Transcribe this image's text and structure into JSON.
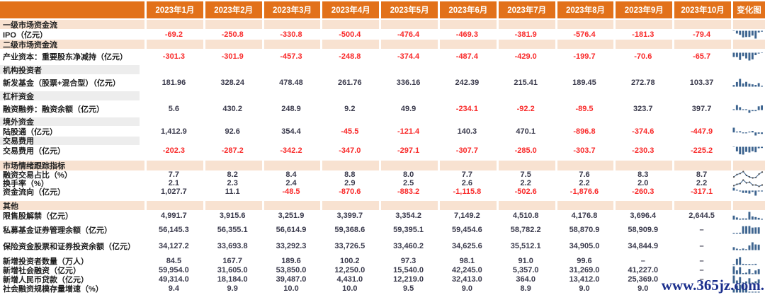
{
  "colors": {
    "header_orange": "#e2711a",
    "section_peach": "#f8e2d1",
    "section_gray": "#ededed",
    "value_dark": "#3a3a4c",
    "value_negative_red": "#f92a2a",
    "sparkline_blue": "#3d648f",
    "watermark_blue": "#1b2f8d"
  },
  "watermark": "www.365jz.com.",
  "table": {
    "months": [
      "2023年1月",
      "2023年2月",
      "2023年3月",
      "2023年4月",
      "2023年5月",
      "2023年6月",
      "2023年7月",
      "2023年8月",
      "2023年9月",
      "2023年10月"
    ],
    "chart_column_label": "变化图",
    "rows": [
      {
        "type": "section",
        "variant": "peach",
        "label": "一级市场资金流"
      },
      {
        "type": "data",
        "spark": "bar",
        "label": "IPO（亿元）",
        "values": [
          "-69.2",
          "-250.8",
          "-330.8",
          "-500.4",
          "-476.4",
          "-469.3",
          "-381.9",
          "-576.4",
          "-181.3",
          "-79.4"
        ]
      },
      {
        "type": "section",
        "variant": "peach",
        "label": "二级市场资金流"
      },
      {
        "type": "data",
        "spark": "bar",
        "label": "产业资本：重要股东净减持（亿元）",
        "values": [
          "-301.3",
          "-301.9",
          "-457.3",
          "-248.8",
          "-374.4",
          "-487.4",
          "-429.0",
          "-199.7",
          "-70.6",
          "-65.7"
        ]
      },
      {
        "type": "section",
        "variant": "gray",
        "label": "机构投资者"
      },
      {
        "type": "data",
        "spark": "bar",
        "label": "新发基金（股票+混合型）（亿元）",
        "values": [
          "181.96",
          "328.24",
          "478.48",
          "261.76",
          "336.16",
          "242.39",
          "215.41",
          "189.45",
          "272.78",
          "103.37"
        ]
      },
      {
        "type": "section",
        "variant": "gray",
        "label": "杠杆资金"
      },
      {
        "type": "data",
        "spark": "bar",
        "label": "融资融券：融资余额（亿元）",
        "values": [
          "5.6",
          "430.2",
          "248.9",
          "9.2",
          "49.9",
          "-234.1",
          "-92.2",
          "-89.5",
          "323.7",
          "397.7"
        ]
      },
      {
        "type": "section",
        "variant": "gray",
        "label": "境外资金"
      },
      {
        "type": "data",
        "spark": "bar",
        "label": "陆股通（亿元）",
        "values": [
          "1,412.9",
          "92.6",
          "354.4",
          "-45.5",
          "-121.4",
          "140.3",
          "470.1",
          "-896.8",
          "-374.6",
          "-447.9"
        ]
      },
      {
        "type": "section",
        "variant": "gray",
        "label": "交易费用"
      },
      {
        "type": "data",
        "spark": "bar",
        "label": "交易费用（亿元）",
        "values": [
          "-202.3",
          "-287.2",
          "-342.2",
          "-347.0",
          "-297.1",
          "-307.7",
          "-285.0",
          "-303.7",
          "-230.3",
          "-225.2"
        ]
      },
      {
        "type": "section",
        "variant": "peach",
        "label": "市场情绪跟踪指标"
      },
      {
        "type": "data",
        "spark": "line",
        "label": "融资交易占比（%）",
        "values": [
          "7.7",
          "8.2",
          "8.4",
          "8.8",
          "8.0",
          "7.7",
          "7.5",
          "7.6",
          "8.3",
          "8.7"
        ]
      },
      {
        "type": "data",
        "spark": "line",
        "label": "换手率（%）",
        "values": [
          "2.1",
          "2.3",
          "2.4",
          "2.9",
          "2.5",
          "2.6",
          "2.2",
          "2.2",
          "2.0",
          "2.2"
        ]
      },
      {
        "type": "data",
        "spark": "bar",
        "label": "资金流向（亿元）",
        "values": [
          "1,027.7",
          "11.1",
          "-48.5",
          "-870.6",
          "-883.2",
          "-1,115.8",
          "-502.6",
          "-1,876.6",
          "-260.3",
          "-317.1"
        ]
      },
      {
        "type": "section",
        "variant": "peach",
        "label": "其他"
      },
      {
        "type": "data",
        "spark": "bar",
        "label": "限售股解禁（亿元）",
        "values": [
          "4,991.7",
          "3,915.6",
          "3,251.9",
          "3,399.7",
          "3,354.2",
          "7,149.2",
          "4,510.8",
          "4,176.8",
          "3,696.4",
          "2,644.5"
        ]
      },
      {
        "type": "data",
        "spark": "bar",
        "label": "私募基金证券管理余额（亿元）",
        "values": [
          "56,145.3",
          "56,355.1",
          "56,614.9",
          "59,368.6",
          "59,395.1",
          "59,454.6",
          "58,782.2",
          "58,870.9",
          "58,909.9",
          "–"
        ]
      },
      {
        "type": "data",
        "spark": "bar",
        "label": "保险资金股票和证券投资余额（亿元）",
        "values": [
          "34,127.2",
          "33,693.8",
          "33,292.3",
          "33,726.5",
          "33,460.2",
          "34,625.6",
          "35,512.1",
          "34,905.0",
          "34,844.9",
          "–"
        ]
      },
      {
        "type": "data",
        "spark": "bar",
        "label": "新增投资者数量（万人）",
        "values": [
          "84.5",
          "167.7",
          "189.6",
          "100.2",
          "97.3",
          "98.1",
          "91.0",
          "99.6",
          "–",
          "–"
        ]
      },
      {
        "type": "data",
        "spark": "bar",
        "label": "新增社会融资（亿元）",
        "values": [
          "59,954.0",
          "31,605.0",
          "53,850.0",
          "12,250.0",
          "15,540.0",
          "42,245.0",
          "5,357.0",
          "31,269.0",
          "41,227.0",
          "–"
        ]
      },
      {
        "type": "data",
        "spark": "bar",
        "label": "新增人民币贷款（亿元）",
        "values": [
          "49,314.0",
          "18,184.0",
          "39,487.0",
          "4,431.0",
          "12,219.0",
          "32,413.0",
          "364.0",
          "13,412.0",
          "25,369.0",
          "–"
        ]
      },
      {
        "type": "data",
        "spark": "bar",
        "label": "社会融资规模存量增速（%）",
        "values": [
          "9.4",
          "9.9",
          "10.0",
          "10.0",
          "9.5",
          "9.0",
          "8.9",
          "9.0",
          "9.0",
          ""
        ]
      }
    ]
  }
}
